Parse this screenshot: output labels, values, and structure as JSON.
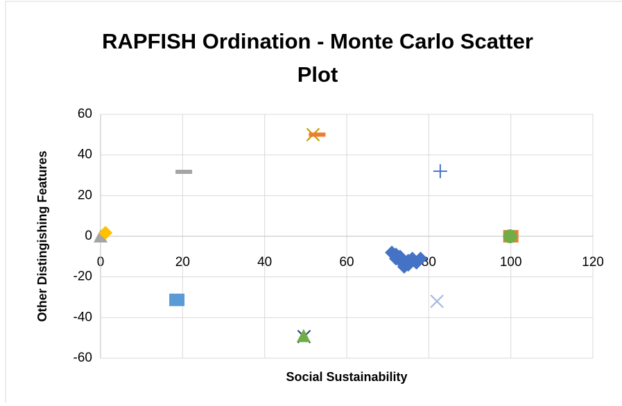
{
  "chart_data": {
    "type": "scatter",
    "title": [
      "RAPFISH Ordination - Monte Carlo Scatter",
      "Plot"
    ],
    "xlabel": "Social Sustainability",
    "ylabel": "Other Distingishing Features",
    "xlim": [
      0,
      120
    ],
    "xticks": [
      0,
      20,
      40,
      60,
      80,
      100,
      120
    ],
    "ylim": [
      -60,
      60
    ],
    "yticks": [
      -60,
      -40,
      -20,
      0,
      20,
      40,
      60
    ],
    "grid": true,
    "series": [
      {
        "marker": "diamond",
        "color": "#4472c4",
        "x": [
          71,
          72,
          73,
          72,
          74,
          74,
          75,
          76,
          77,
          78,
          73,
          75
        ],
        "values": [
          -8,
          -11,
          -10,
          -9,
          -13,
          -15,
          -12,
          -11,
          -13,
          -11,
          -12,
          -14
        ]
      },
      {
        "marker": "square",
        "color": "#ed7d31",
        "x": [
          100
        ],
        "values": [
          0
        ]
      },
      {
        "marker": "triangle",
        "color": "#a5a5a5",
        "x": [
          0
        ],
        "values": [
          0
        ]
      },
      {
        "marker": "diamond",
        "color": "#ffc000",
        "x": [
          1.2
        ],
        "values": [
          1.7
        ]
      },
      {
        "marker": "square",
        "color": "#5b9bd5",
        "x": [
          18.6
        ],
        "values": [
          -31.3
        ]
      },
      {
        "marker": "cross",
        "color": "#264478",
        "x": [
          49.6
        ],
        "values": [
          -49.4
        ]
      },
      {
        "marker": "triangle",
        "color": "#70ad47",
        "x": [
          49.5
        ],
        "values": [
          -49
        ]
      },
      {
        "marker": "cross",
        "color": "#c9a000",
        "x": [
          51.8
        ],
        "values": [
          50
        ]
      },
      {
        "marker": "dash",
        "color": "#ed7d31",
        "x": [
          52.8
        ],
        "values": [
          50
        ]
      },
      {
        "marker": "dash",
        "color": "#a5a5a5",
        "x": [
          20.3
        ],
        "values": [
          31.7
        ]
      },
      {
        "marker": "plus",
        "color": "#4472c4",
        "x": [
          82.8
        ],
        "values": [
          32
        ]
      },
      {
        "marker": "cross",
        "color": "#a9b8dc",
        "x": [
          82
        ],
        "values": [
          -32
        ]
      },
      {
        "marker": "circle",
        "color": "#70ad47",
        "x": [
          99.8
        ],
        "values": [
          0
        ]
      }
    ]
  }
}
